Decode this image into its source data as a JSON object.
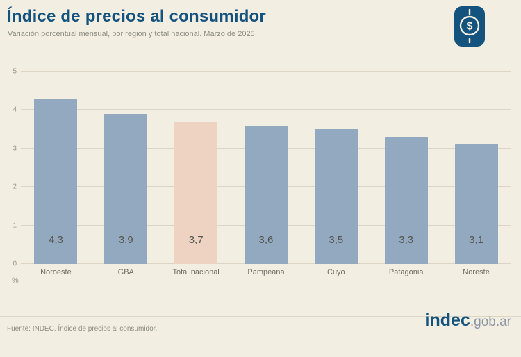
{
  "header": {
    "title": "Índice de precios al consumidor",
    "subtitle": "Variación porcentual mensual, por región y total nacional. Marzo de 2025"
  },
  "chart_data": {
    "type": "bar",
    "categories": [
      "Noroeste",
      "GBA",
      "Total nacional",
      "Pampeana",
      "Cuyo",
      "Patagonia",
      "Noreste"
    ],
    "values": [
      4.3,
      3.9,
      3.7,
      3.6,
      3.5,
      3.3,
      3.1
    ],
    "value_labels": [
      "4,3",
      "3,9",
      "3,7",
      "3,6",
      "3,5",
      "3,3",
      "3,1"
    ],
    "highlight_index": 2,
    "title": "Índice de precios al consumidor",
    "xlabel": "",
    "ylabel": "%",
    "ylim": [
      0,
      5
    ],
    "yticks": [
      0,
      1,
      2,
      3,
      4,
      5
    ],
    "grid": true,
    "legend": "none",
    "bar_color": "#92a9c0",
    "highlight_color": "#eed3c3"
  },
  "icons": {
    "dollar": "$"
  },
  "footer": {
    "source": "Fuente: INDEC. Índice de precios al consumidor.",
    "logo_primary": "indec",
    "logo_suffix": ".gob.ar"
  },
  "colors": {
    "accent": "#14537d",
    "background": "#f3eee2",
    "bar": "#92a9c0",
    "highlight": "#eed3c3",
    "grid": "#dcd5c6",
    "text_muted": "#8f8e83"
  }
}
